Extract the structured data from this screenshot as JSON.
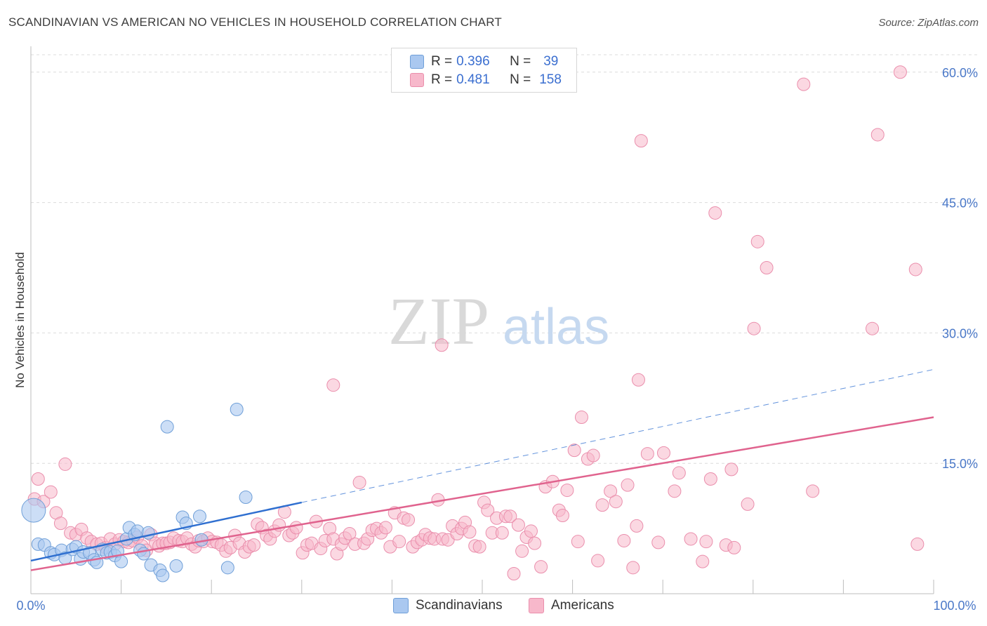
{
  "header": {
    "title": "SCANDINAVIAN VS AMERICAN NO VEHICLES IN HOUSEHOLD CORRELATION CHART",
    "source": "Source: ZipAtlas.com"
  },
  "legend": {
    "rows": [
      {
        "r_label": "R =",
        "r_value": "0.396",
        "n_label": "N =",
        "n_value": "39"
      },
      {
        "r_label": "R =",
        "r_value": "0.481",
        "n_label": "N =",
        "n_value": "158"
      }
    ]
  },
  "watermark": {
    "zip": "ZIP",
    "atlas": "atlas"
  },
  "colors": {
    "scandinavians_fill": "#aac8f0",
    "scandinavians_stroke": "#6f9fd8",
    "scandinavians_line": "#2f6fd0",
    "americans_fill": "#f7b8cb",
    "americans_stroke": "#ea8eac",
    "americans_line": "#e0638e",
    "tick_text": "#4a78c8",
    "grid": "#dcdcdc"
  },
  "chart_data": {
    "type": "scatter",
    "title": "SCANDINAVIAN VS AMERICAN NO VEHICLES IN HOUSEHOLD CORRELATION CHART",
    "xlabel": "",
    "ylabel": "No Vehicles in Household",
    "xlim": [
      0,
      100
    ],
    "ylim": [
      0,
      62
    ],
    "x_tick_labels": [
      "0.0%",
      "100.0%"
    ],
    "y_ticks": [
      15,
      30,
      45,
      60
    ],
    "y_tick_labels": [
      "15.0%",
      "30.0%",
      "45.0%",
      "60.0%"
    ],
    "grid": true,
    "legend_position": "top-center",
    "series": [
      {
        "name": "Scandinavians",
        "r": 0.396,
        "n": 39,
        "trend": {
          "x0": 0,
          "y0": 3.8,
          "x1": 30,
          "y1": 10.5,
          "dashed_to_x": 100,
          "dashed_to_y": 25.8
        },
        "points": [
          [
            0.3,
            9.6
          ],
          [
            0.8,
            5.7
          ],
          [
            1.5,
            5.6
          ],
          [
            2.2,
            4.7
          ],
          [
            2.6,
            4.5
          ],
          [
            3.4,
            5.0
          ],
          [
            3.8,
            4.1
          ],
          [
            4.6,
            5.1
          ],
          [
            5.0,
            5.4
          ],
          [
            5.5,
            4.0
          ],
          [
            5.8,
            4.8
          ],
          [
            6.5,
            4.7
          ],
          [
            7.0,
            3.9
          ],
          [
            7.3,
            3.6
          ],
          [
            7.9,
            5.1
          ],
          [
            8.4,
            4.7
          ],
          [
            8.8,
            4.8
          ],
          [
            9.3,
            4.4
          ],
          [
            9.6,
            4.9
          ],
          [
            10.0,
            3.7
          ],
          [
            10.6,
            6.3
          ],
          [
            10.9,
            7.6
          ],
          [
            11.5,
            6.8
          ],
          [
            11.8,
            7.2
          ],
          [
            12.1,
            5.0
          ],
          [
            12.5,
            4.6
          ],
          [
            13.0,
            7.0
          ],
          [
            13.3,
            3.3
          ],
          [
            14.3,
            2.7
          ],
          [
            14.6,
            2.1
          ],
          [
            15.1,
            19.2
          ],
          [
            16.1,
            3.2
          ],
          [
            16.8,
            8.8
          ],
          [
            17.2,
            8.1
          ],
          [
            18.7,
            8.9
          ],
          [
            18.9,
            6.2
          ],
          [
            21.8,
            3.0
          ],
          [
            22.8,
            21.2
          ],
          [
            23.8,
            11.1
          ]
        ]
      },
      {
        "name": "Americans",
        "r": 0.481,
        "n": 158,
        "trend": {
          "x0": 0,
          "y0": 2.7,
          "x1": 100,
          "y1": 20.3
        },
        "points": [
          [
            0.4,
            10.9
          ],
          [
            0.8,
            13.2
          ],
          [
            1.4,
            10.6
          ],
          [
            2.2,
            11.7
          ],
          [
            2.8,
            9.3
          ],
          [
            3.3,
            8.1
          ],
          [
            3.8,
            14.9
          ],
          [
            4.4,
            7.0
          ],
          [
            5.0,
            6.8
          ],
          [
            5.6,
            7.4
          ],
          [
            6.2,
            6.4
          ],
          [
            6.7,
            6.0
          ],
          [
            7.3,
            5.7
          ],
          [
            7.8,
            5.8
          ],
          [
            8.3,
            5.3
          ],
          [
            8.8,
            6.3
          ],
          [
            9.3,
            5.7
          ],
          [
            9.8,
            6.2
          ],
          [
            10.3,
            6.0
          ],
          [
            10.8,
            5.9
          ],
          [
            11.3,
            6.1
          ],
          [
            11.8,
            6.5
          ],
          [
            12.3,
            5.5
          ],
          [
            12.8,
            5.0
          ],
          [
            13.3,
            6.8
          ],
          [
            13.8,
            5.8
          ],
          [
            14.2,
            5.5
          ],
          [
            14.6,
            5.8
          ],
          [
            15.0,
            5.8
          ],
          [
            15.4,
            5.9
          ],
          [
            15.8,
            6.4
          ],
          [
            16.4,
            6.1
          ],
          [
            16.8,
            6.0
          ],
          [
            17.3,
            6.4
          ],
          [
            17.8,
            5.7
          ],
          [
            18.2,
            5.4
          ],
          [
            18.6,
            6.1
          ],
          [
            19.1,
            6.0
          ],
          [
            19.6,
            6.4
          ],
          [
            20.1,
            6.0
          ],
          [
            20.6,
            5.9
          ],
          [
            21.1,
            5.6
          ],
          [
            21.6,
            4.9
          ],
          [
            22.1,
            5.3
          ],
          [
            22.6,
            6.7
          ],
          [
            23.1,
            5.8
          ],
          [
            23.7,
            4.8
          ],
          [
            24.2,
            5.4
          ],
          [
            24.7,
            5.6
          ],
          [
            25.1,
            8.0
          ],
          [
            25.6,
            7.6
          ],
          [
            26.1,
            6.7
          ],
          [
            26.5,
            6.3
          ],
          [
            27.0,
            7.2
          ],
          [
            27.5,
            7.9
          ],
          [
            28.1,
            9.4
          ],
          [
            28.6,
            6.7
          ],
          [
            29.0,
            7.0
          ],
          [
            29.4,
            7.6
          ],
          [
            30.1,
            4.7
          ],
          [
            30.6,
            5.6
          ],
          [
            31.1,
            5.8
          ],
          [
            31.6,
            8.3
          ],
          [
            32.1,
            5.2
          ],
          [
            32.6,
            6.1
          ],
          [
            33.1,
            7.5
          ],
          [
            33.5,
            6.3
          ],
          [
            33.9,
            4.6
          ],
          [
            34.4,
            5.7
          ],
          [
            34.8,
            6.4
          ],
          [
            35.3,
            6.9
          ],
          [
            35.9,
            5.7
          ],
          [
            36.4,
            12.8
          ],
          [
            36.9,
            5.8
          ],
          [
            37.3,
            6.3
          ],
          [
            37.8,
            7.3
          ],
          [
            38.3,
            7.5
          ],
          [
            38.8,
            7.0
          ],
          [
            39.3,
            7.6
          ],
          [
            39.8,
            5.4
          ],
          [
            40.3,
            9.3
          ],
          [
            40.8,
            6.0
          ],
          [
            41.3,
            8.7
          ],
          [
            41.8,
            8.5
          ],
          [
            42.3,
            5.4
          ],
          [
            42.8,
            5.9
          ],
          [
            43.3,
            6.2
          ],
          [
            43.7,
            6.8
          ],
          [
            44.2,
            6.4
          ],
          [
            44.7,
            6.3
          ],
          [
            45.1,
            10.8
          ],
          [
            45.6,
            6.3
          ],
          [
            46.2,
            6.2
          ],
          [
            46.7,
            7.8
          ],
          [
            47.2,
            6.9
          ],
          [
            47.7,
            7.5
          ],
          [
            48.1,
            8.2
          ],
          [
            48.6,
            7.1
          ],
          [
            49.2,
            5.5
          ],
          [
            49.7,
            5.4
          ],
          [
            50.2,
            10.5
          ],
          [
            50.6,
            9.6
          ],
          [
            51.1,
            7.0
          ],
          [
            51.6,
            8.7
          ],
          [
            52.2,
            7.0
          ],
          [
            52.6,
            8.9
          ],
          [
            53.1,
            8.9
          ],
          [
            53.5,
            2.3
          ],
          [
            54.0,
            7.9
          ],
          [
            54.4,
            4.9
          ],
          [
            54.9,
            6.5
          ],
          [
            55.4,
            7.2
          ],
          [
            55.8,
            5.8
          ],
          [
            56.5,
            3.1
          ],
          [
            57.0,
            12.3
          ],
          [
            57.8,
            12.9
          ],
          [
            58.5,
            9.6
          ],
          [
            58.9,
            9.0
          ],
          [
            59.4,
            11.9
          ],
          [
            60.2,
            16.5
          ],
          [
            60.6,
            6.0
          ],
          [
            61.0,
            20.3
          ],
          [
            61.7,
            15.5
          ],
          [
            62.3,
            15.9
          ],
          [
            62.8,
            3.8
          ],
          [
            63.3,
            10.2
          ],
          [
            64.2,
            11.8
          ],
          [
            64.8,
            10.6
          ],
          [
            65.7,
            6.1
          ],
          [
            66.1,
            12.5
          ],
          [
            66.7,
            3.0
          ],
          [
            67.1,
            7.8
          ],
          [
            67.6,
            52.1
          ],
          [
            68.3,
            16.1
          ],
          [
            69.5,
            5.9
          ],
          [
            70.1,
            16.2
          ],
          [
            71.3,
            11.8
          ],
          [
            71.8,
            13.9
          ],
          [
            73.1,
            6.3
          ],
          [
            74.4,
            3.7
          ],
          [
            74.8,
            6.0
          ],
          [
            75.3,
            13.2
          ],
          [
            75.8,
            43.8
          ],
          [
            77.0,
            5.6
          ],
          [
            77.6,
            14.3
          ],
          [
            77.9,
            5.3
          ],
          [
            79.4,
            10.3
          ],
          [
            80.1,
            30.5
          ],
          [
            80.5,
            40.5
          ],
          [
            81.5,
            37.5
          ],
          [
            85.6,
            58.6
          ],
          [
            86.6,
            11.8
          ],
          [
            93.2,
            30.5
          ],
          [
            93.8,
            52.8
          ],
          [
            98.0,
            37.3
          ],
          [
            98.2,
            5.7
          ],
          [
            96.3,
            60.0
          ],
          [
            67.3,
            24.6
          ],
          [
            45.5,
            28.6
          ],
          [
            33.5,
            24.0
          ]
        ]
      }
    ]
  },
  "bottom_legend": {
    "items": [
      {
        "label": "Scandinavians"
      },
      {
        "label": "Americans"
      }
    ]
  }
}
